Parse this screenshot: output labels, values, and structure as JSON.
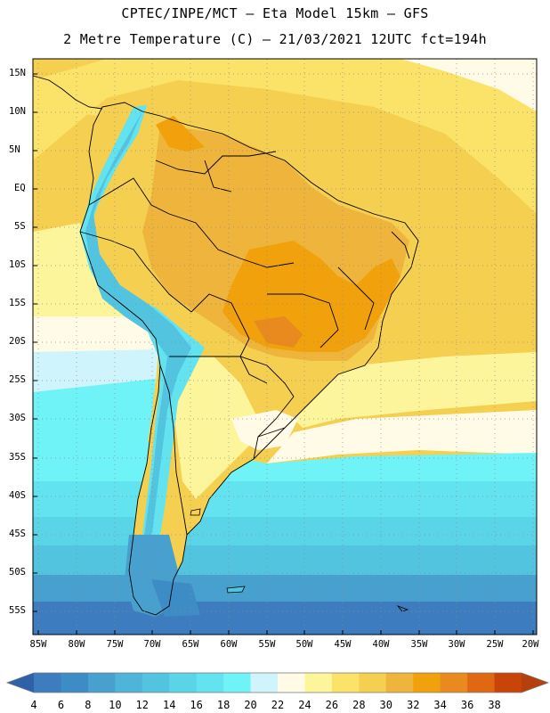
{
  "title": {
    "line1": "CPTEC/INPE/MCT –  Eta Model 15km – GFS",
    "line2": "2 Metre Temperature (C) – 21/03/2021 12UTC fct=194h"
  },
  "map": {
    "lat_labels": [
      "15N",
      "10N",
      "5N",
      "EQ",
      "5S",
      "10S",
      "15S",
      "20S",
      "25S",
      "30S",
      "35S",
      "40S",
      "45S",
      "50S",
      "55S"
    ],
    "lon_labels": [
      "85W",
      "80W",
      "75W",
      "70W",
      "65W",
      "60W",
      "55W",
      "50W",
      "45W",
      "40W",
      "35W",
      "30W",
      "25W",
      "20W"
    ],
    "lat_range": [
      17,
      -58
    ],
    "lon_range": [
      -85.5,
      -20
    ]
  },
  "colorbar": {
    "labels": [
      "4",
      "6",
      "8",
      "10",
      "12",
      "14",
      "16",
      "18",
      "20",
      "22",
      "24",
      "26",
      "28",
      "30",
      "32",
      "34",
      "36",
      "38"
    ],
    "colors": [
      "#3d7dbf",
      "#3d8cc6",
      "#48a0cf",
      "#4eb4d8",
      "#52c4e0",
      "#5ad4e7",
      "#62e3ef",
      "#6ff3f7",
      "#cff4fb",
      "#fffbe6",
      "#fdf59b",
      "#fbe36a",
      "#f5cf50",
      "#eeb43c",
      "#f0a10b",
      "#e88a1e",
      "#e06812",
      "#c94409"
    ],
    "low_color": "#2e62a8",
    "high_color": "#b5400e"
  }
}
